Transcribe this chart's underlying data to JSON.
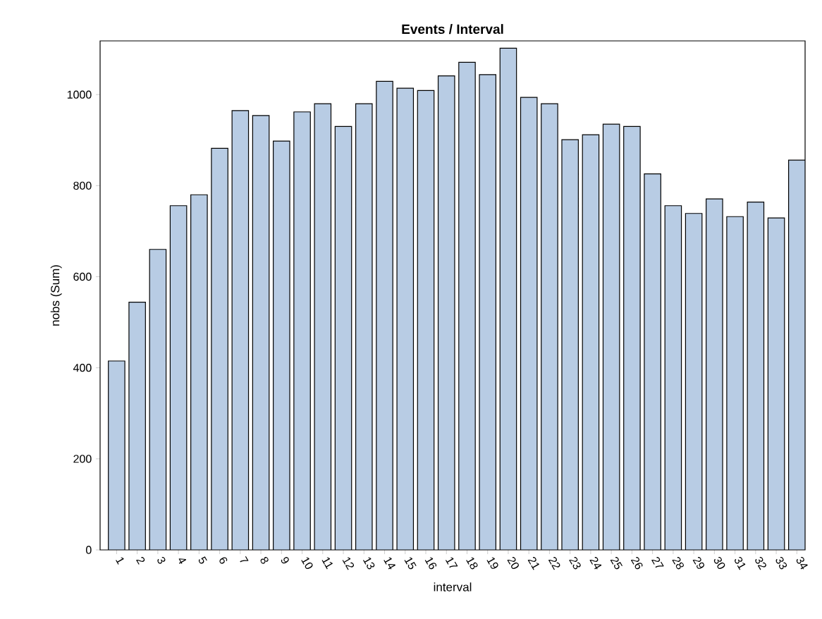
{
  "chart_data": {
    "type": "bar",
    "title": "Events / Interval",
    "xlabel": "interval",
    "ylabel": "nobs (Sum)",
    "categories": [
      "1",
      "2",
      "3",
      "4",
      "5",
      "6",
      "7",
      "8",
      "9",
      "10",
      "11",
      "12",
      "13",
      "14",
      "15",
      "16",
      "17",
      "18",
      "19",
      "20",
      "21",
      "22",
      "23",
      "24",
      "25",
      "26",
      "27",
      "28",
      "29",
      "30",
      "31",
      "32",
      "33",
      "34"
    ],
    "values": [
      415,
      544,
      660,
      756,
      780,
      882,
      965,
      954,
      898,
      962,
      980,
      930,
      980,
      1029,
      1014,
      1009,
      1041,
      1071,
      1044,
      1102,
      994,
      980,
      901,
      912,
      935,
      930,
      826,
      756,
      739,
      771,
      732,
      764,
      729,
      856
    ],
    "color": "#b8cce4",
    "ylim": [
      0,
      1118
    ],
    "yticks": [
      0,
      200,
      400,
      600,
      800,
      1000
    ],
    "grid": false
  }
}
